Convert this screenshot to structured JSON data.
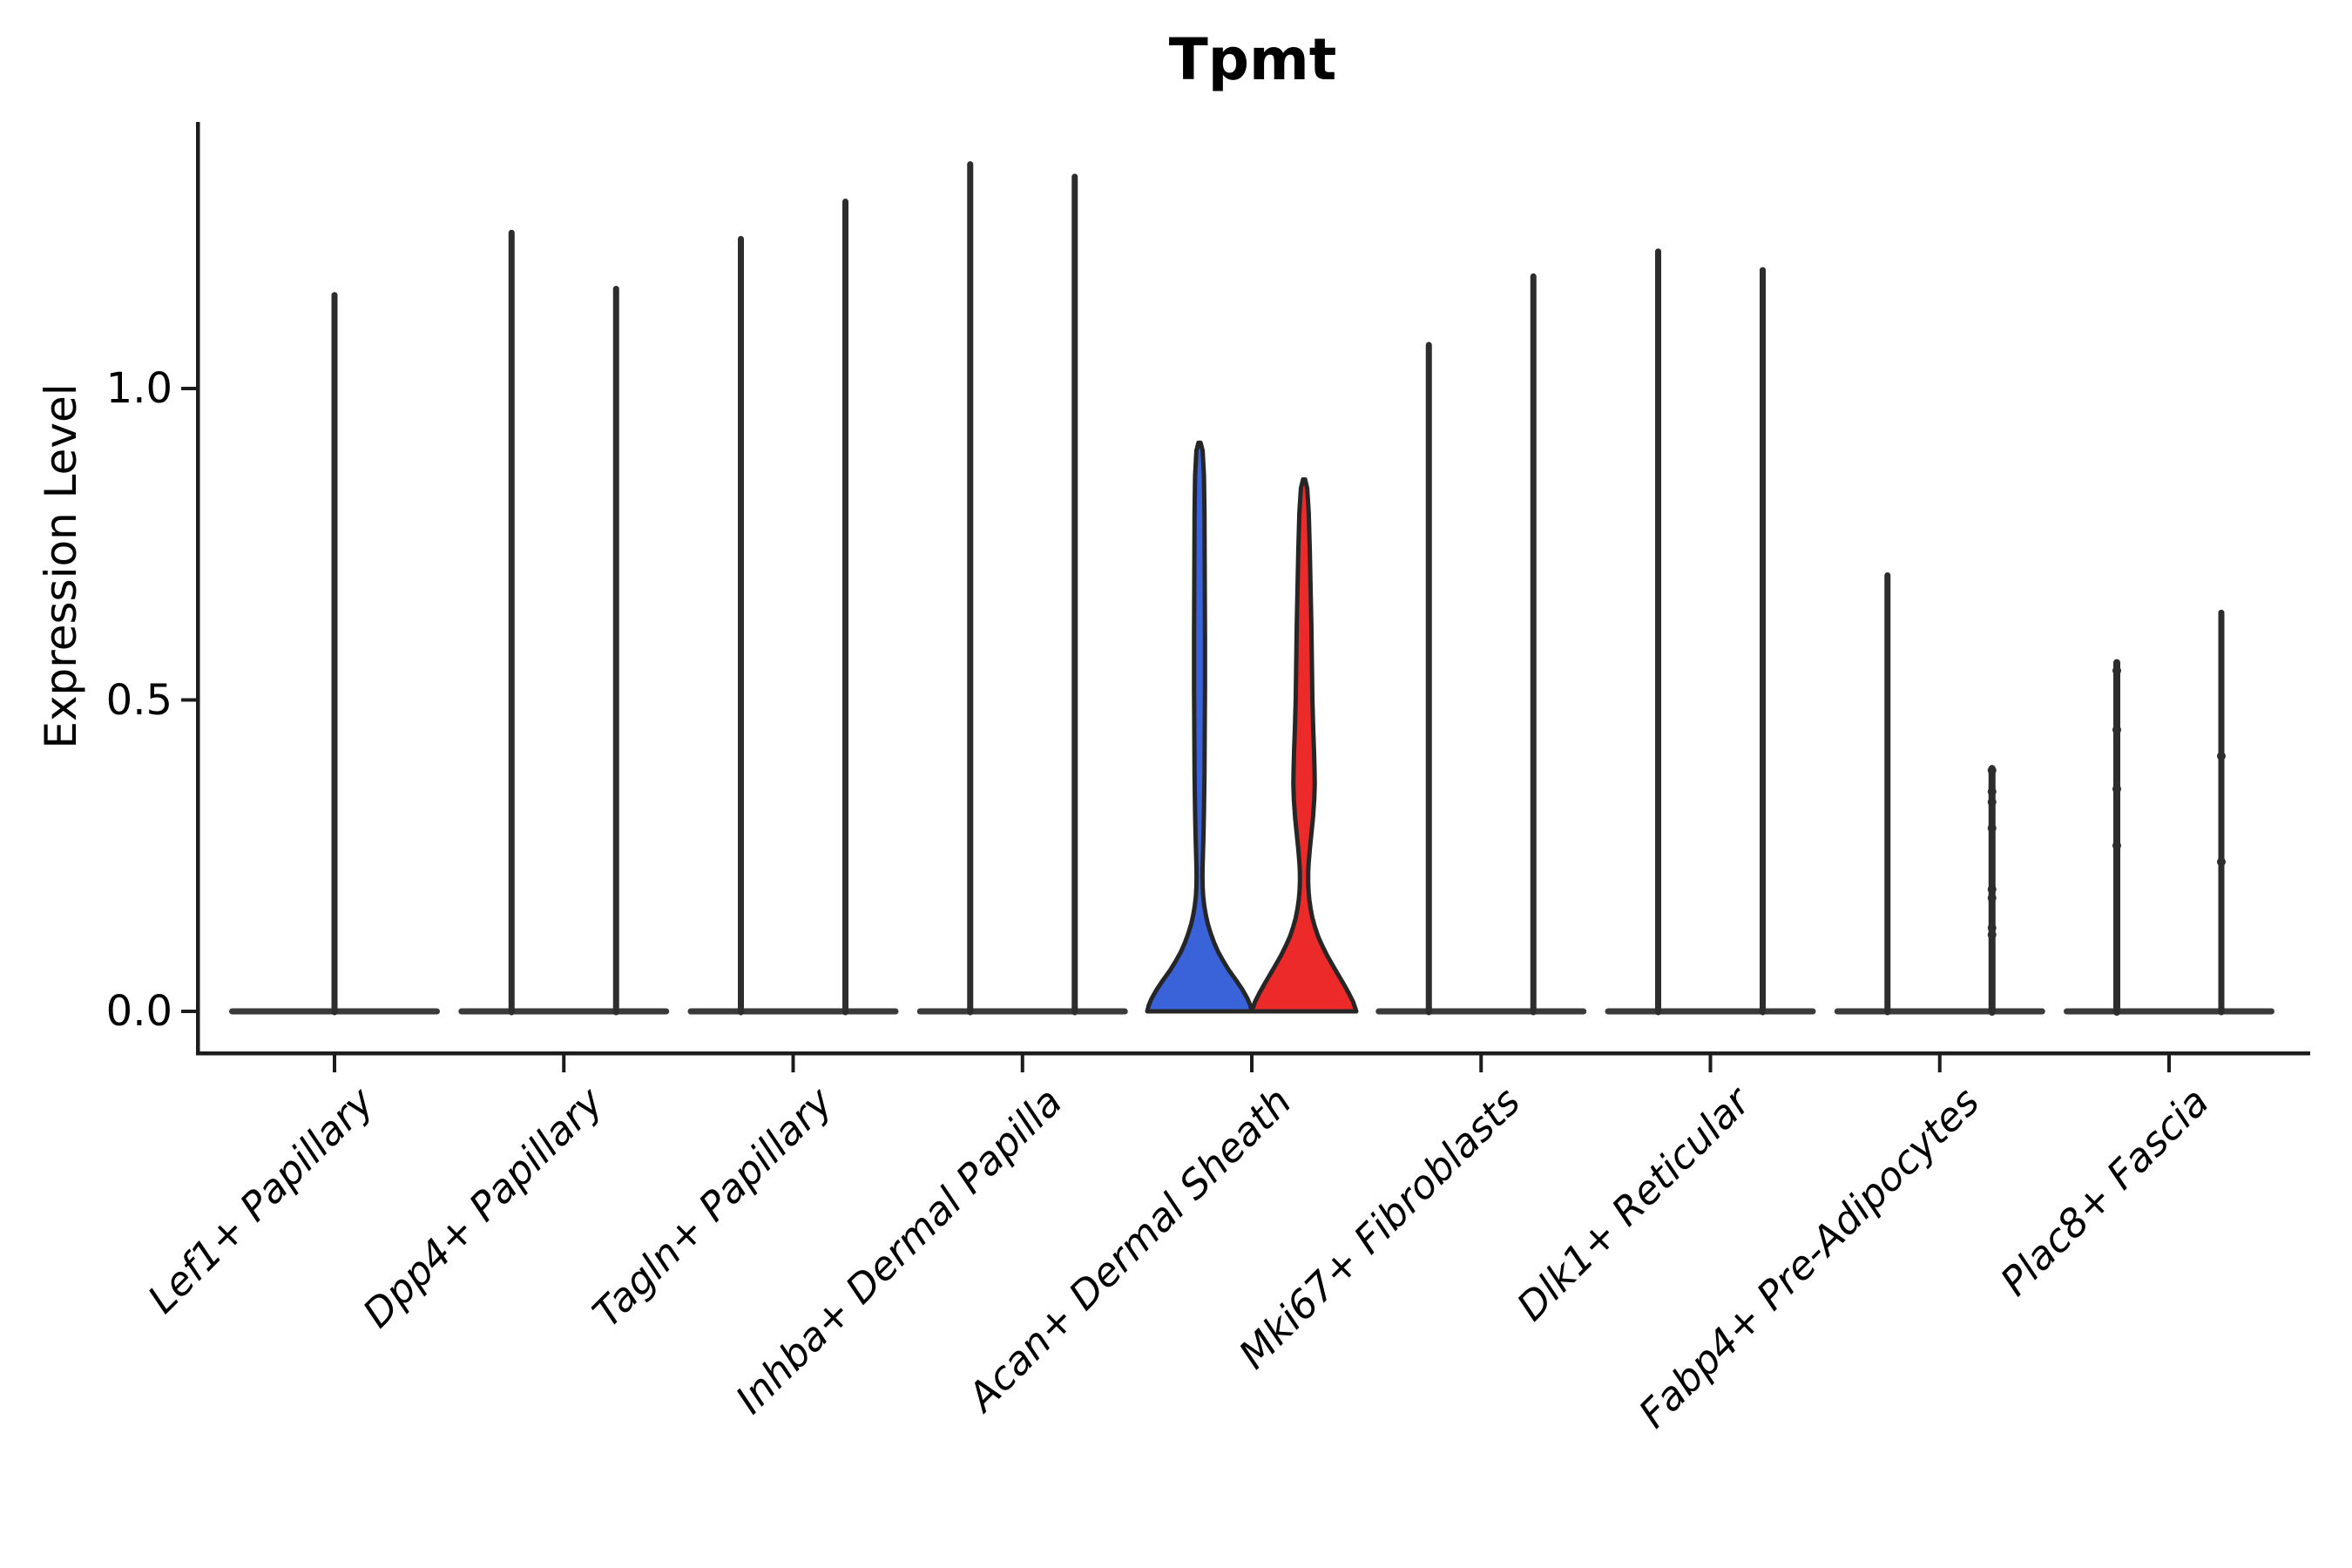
{
  "chart_data": {
    "type": "violin",
    "title": "Tpmt",
    "ylabel": "Expression Level",
    "xlabel": "",
    "ylim": [
      -0.07,
      1.43
    ],
    "grid": false,
    "legend": "none",
    "yticks": [
      {
        "label": "0.0",
        "value": 0.0
      },
      {
        "label": "0.5",
        "value": 0.5
      },
      {
        "label": "1.0",
        "value": 1.0
      }
    ],
    "colors": {
      "blue_fill": "#3A62D9",
      "red_fill": "#EC2A2A",
      "violin_outline": "#262626",
      "needle": "#2D2D2D",
      "base_line": "#3A3A3A",
      "spine": "#1C1C1C"
    },
    "categories": [
      {
        "label": "Lef1+ Papillary",
        "violins": [
          {
            "pos": "center",
            "type": "needle",
            "max": 1.15
          }
        ]
      },
      {
        "label": "Dpp4+ Papillary",
        "violins": [
          {
            "pos": "left",
            "type": "needle",
            "max": 1.25
          },
          {
            "pos": "right",
            "type": "needle",
            "max": 1.16
          }
        ]
      },
      {
        "label": "Tagln+ Papillary",
        "violins": [
          {
            "pos": "left",
            "type": "needle",
            "max": 1.24
          },
          {
            "pos": "right",
            "type": "needle",
            "max": 1.3
          }
        ]
      },
      {
        "label": "Inhba+ Dermal Papilla",
        "violins": [
          {
            "pos": "left",
            "type": "needle",
            "max": 1.36
          },
          {
            "pos": "right",
            "type": "needle",
            "max": 1.34
          }
        ]
      },
      {
        "label": "Acan+ Dermal Sheath",
        "violins": [
          {
            "pos": "left",
            "type": "density",
            "max": 0.91,
            "fill": "#3A62D9",
            "profile": [
              [
                0.913,
                0.02
              ],
              [
                0.9,
                0.06
              ],
              [
                0.86,
                0.085
              ],
              [
                0.8,
                0.095
              ],
              [
                0.7,
                0.1
              ],
              [
                0.6,
                0.105
              ],
              [
                0.52,
                0.105
              ],
              [
                0.45,
                0.1
              ],
              [
                0.38,
                0.095
              ],
              [
                0.32,
                0.085
              ],
              [
                0.28,
                0.075
              ],
              [
                0.25,
                0.065
              ],
              [
                0.23,
                0.058
              ],
              [
                0.215,
                0.056
              ],
              [
                0.2,
                0.06
              ],
              [
                0.185,
                0.07
              ],
              [
                0.17,
                0.09
              ],
              [
                0.155,
                0.12
              ],
              [
                0.14,
                0.16
              ],
              [
                0.125,
                0.215
              ],
              [
                0.11,
                0.28
              ],
              [
                0.095,
                0.36
              ],
              [
                0.08,
                0.46
              ],
              [
                0.065,
                0.57
              ],
              [
                0.05,
                0.7
              ],
              [
                0.035,
                0.82
              ],
              [
                0.02,
                0.92
              ],
              [
                0.01,
                0.97
              ],
              [
                0.0,
                1.0
              ]
            ]
          },
          {
            "pos": "right",
            "type": "density",
            "max": 0.85,
            "fill": "#EC2A2A",
            "profile": [
              [
                0.854,
                0.02
              ],
              [
                0.84,
                0.06
              ],
              [
                0.8,
                0.09
              ],
              [
                0.74,
                0.11
              ],
              [
                0.68,
                0.125
              ],
              [
                0.62,
                0.14
              ],
              [
                0.56,
                0.15
              ],
              [
                0.5,
                0.16
              ],
              [
                0.455,
                0.175
              ],
              [
                0.42,
                0.19
              ],
              [
                0.39,
                0.2
              ],
              [
                0.365,
                0.205
              ],
              [
                0.34,
                0.195
              ],
              [
                0.31,
                0.17
              ],
              [
                0.285,
                0.14
              ],
              [
                0.26,
                0.11
              ],
              [
                0.24,
                0.09
              ],
              [
                0.225,
                0.08
              ],
              [
                0.21,
                0.078
              ],
              [
                0.195,
                0.085
              ],
              [
                0.18,
                0.1
              ],
              [
                0.165,
                0.125
              ],
              [
                0.15,
                0.16
              ],
              [
                0.135,
                0.21
              ],
              [
                0.12,
                0.27
              ],
              [
                0.105,
                0.35
              ],
              [
                0.09,
                0.44
              ],
              [
                0.075,
                0.54
              ],
              [
                0.06,
                0.645
              ],
              [
                0.045,
                0.75
              ],
              [
                0.03,
                0.85
              ],
              [
                0.015,
                0.94
              ],
              [
                0.0,
                1.0
              ]
            ]
          }
        ]
      },
      {
        "label": "Mki67+ Fibroblasts",
        "violins": [
          {
            "pos": "left",
            "type": "needle",
            "max": 1.07
          },
          {
            "pos": "right",
            "type": "needle",
            "max": 1.18
          }
        ]
      },
      {
        "label": "Dlk1+ Reticular",
        "violins": [
          {
            "pos": "left",
            "type": "needle",
            "max": 1.22
          },
          {
            "pos": "right",
            "type": "needle",
            "max": 1.19
          }
        ]
      },
      {
        "label": "Fabp4+ Pre-Adipocytes",
        "violins": [
          {
            "pos": "left",
            "type": "needle",
            "max": 0.7
          },
          {
            "pos": "right",
            "type": "needle",
            "max": 0.39,
            "points": [
              0.387,
              0.353,
              0.336,
              0.294,
              0.196,
              0.182,
              0.134,
              0.123
            ]
          }
        ]
      },
      {
        "label": "Plac8+ Fascia",
        "violins": [
          {
            "pos": "left",
            "type": "needle",
            "max": 0.56,
            "points": [
              0.547,
              0.452,
              0.357,
              0.266
            ]
          },
          {
            "pos": "right",
            "type": "needle",
            "max": 0.64,
            "points": [
              0.41,
              0.24
            ]
          }
        ]
      }
    ]
  }
}
